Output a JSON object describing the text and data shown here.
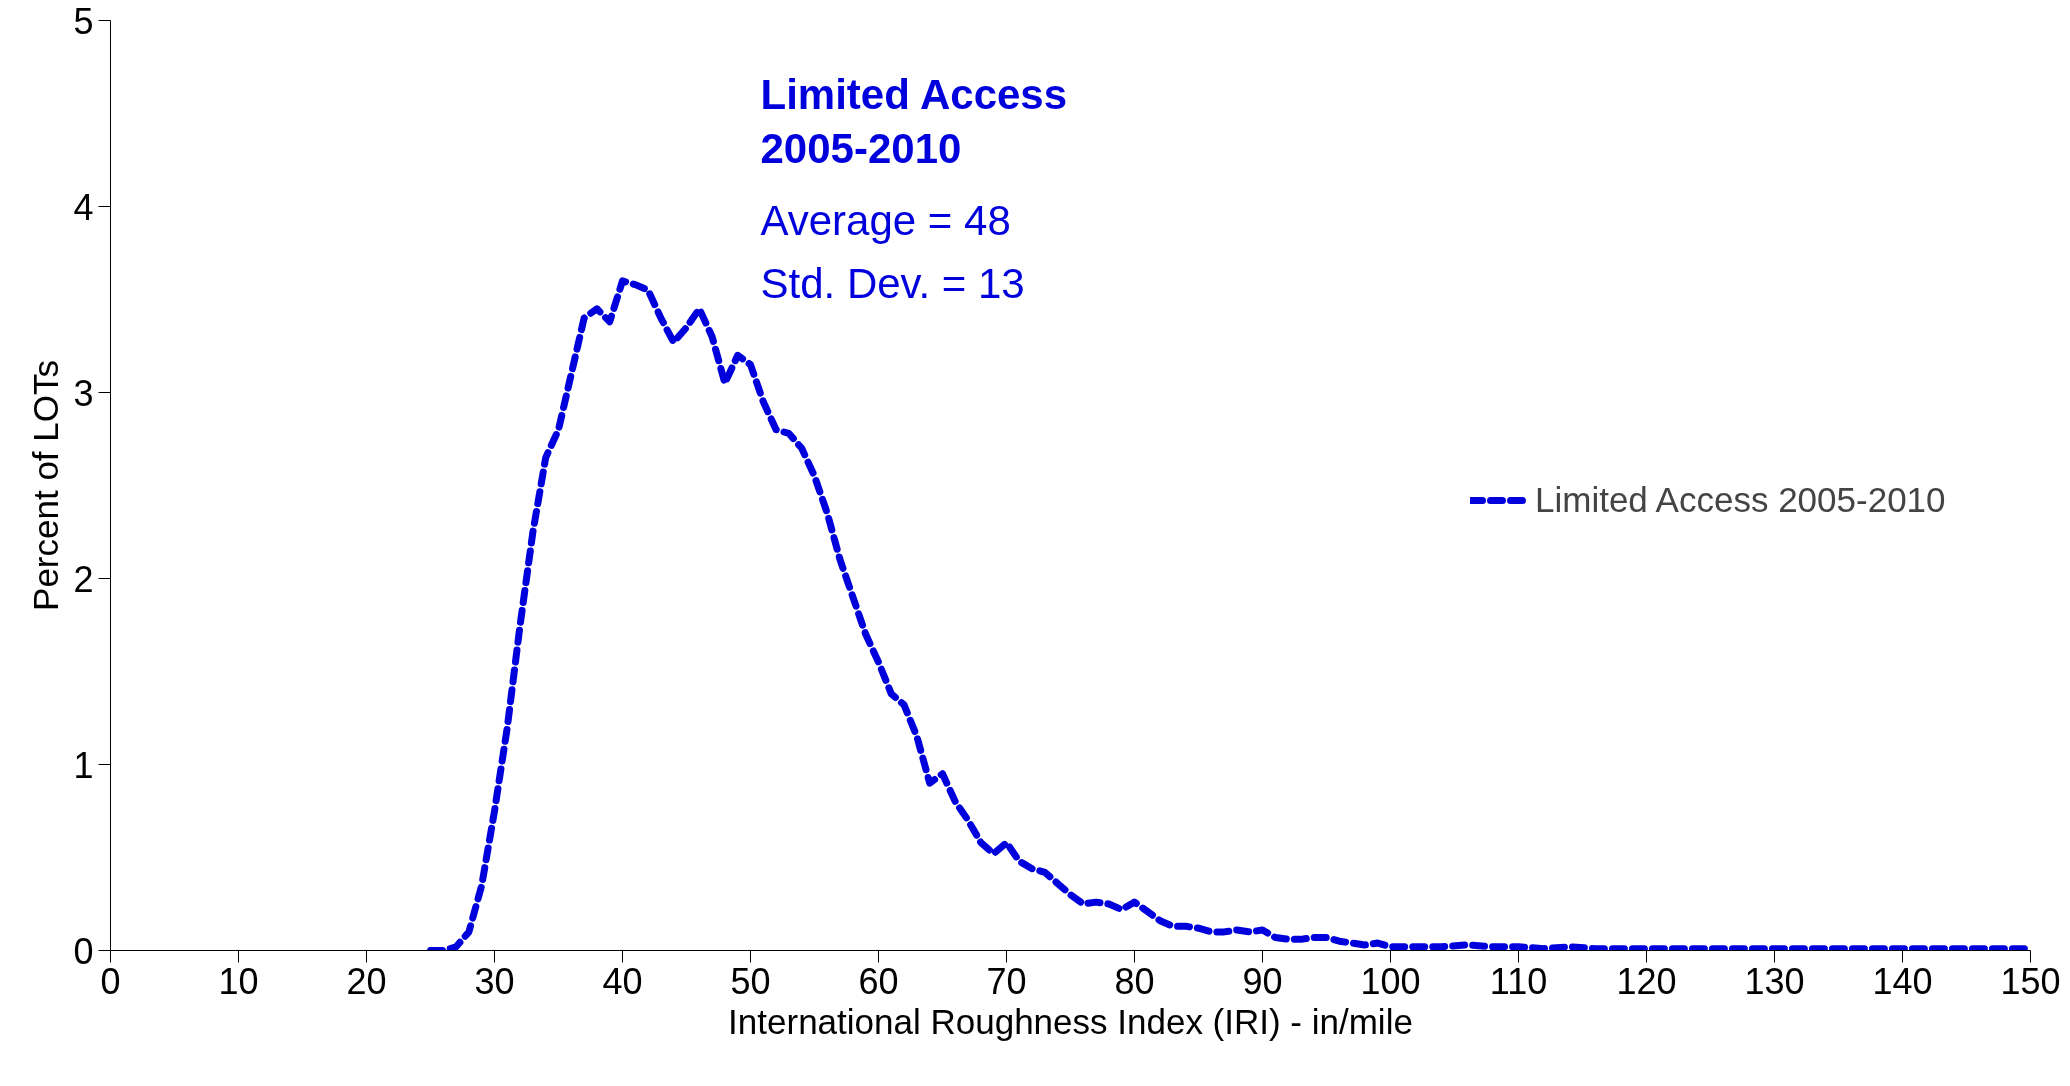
{
  "chart_data": {
    "type": "line",
    "xlabel": "International Roughness Index (IRI) - in/mile",
    "ylabel": "Percent of LOTs",
    "annotations": [
      "Limited Access \n2005-2010",
      "Average = 48",
      "Std. Dev. = 13"
    ],
    "xlim": [
      0,
      150
    ],
    "xticks": [
      0,
      10,
      20,
      30,
      40,
      50,
      60,
      70,
      80,
      90,
      100,
      110,
      120,
      130,
      140,
      150
    ],
    "ylim": [
      0,
      5
    ],
    "yticks": [
      0,
      1,
      2,
      3,
      4,
      5
    ],
    "grid": false,
    "legend": "right",
    "line_style": "dashed",
    "marker": "none",
    "series": [
      {
        "name": "Limited Access 2005-2010",
        "color": "#0000dd",
        "x": [
          25,
          26,
          27,
          28,
          29,
          30,
          31,
          32,
          33,
          34,
          35,
          36,
          37,
          38,
          39,
          40,
          41,
          42,
          43,
          44,
          45,
          46,
          47,
          48,
          49,
          50,
          51,
          52,
          53,
          54,
          55,
          56,
          57,
          58,
          59,
          60,
          61,
          62,
          63,
          64,
          65,
          66,
          67,
          68,
          69,
          70,
          71,
          72,
          73,
          74,
          75,
          76,
          77,
          78,
          79,
          80,
          81,
          82,
          83,
          84,
          85,
          86,
          87,
          88,
          89,
          90,
          91,
          92,
          93,
          94,
          95,
          96,
          97,
          98,
          99,
          100,
          102,
          104,
          106,
          108,
          110,
          112,
          114,
          116,
          118,
          120,
          125,
          130,
          135,
          140,
          145,
          150
        ],
        "values": [
          0,
          0,
          0.02,
          0.1,
          0.35,
          0.75,
          1.2,
          1.75,
          2.25,
          2.65,
          2.8,
          3.1,
          3.4,
          3.45,
          3.38,
          3.6,
          3.58,
          3.55,
          3.4,
          3.27,
          3.35,
          3.45,
          3.3,
          3.05,
          3.2,
          3.15,
          2.95,
          2.8,
          2.78,
          2.7,
          2.55,
          2.35,
          2.1,
          1.9,
          1.7,
          1.55,
          1.38,
          1.32,
          1.15,
          0.9,
          0.95,
          0.8,
          0.7,
          0.58,
          0.52,
          0.58,
          0.48,
          0.44,
          0.42,
          0.36,
          0.3,
          0.25,
          0.26,
          0.25,
          0.22,
          0.26,
          0.21,
          0.16,
          0.13,
          0.13,
          0.12,
          0.1,
          0.1,
          0.11,
          0.1,
          0.11,
          0.07,
          0.06,
          0.06,
          0.07,
          0.07,
          0.05,
          0.04,
          0.03,
          0.04,
          0.02,
          0.02,
          0.02,
          0.03,
          0.02,
          0.02,
          0.01,
          0.02,
          0.01,
          0.01,
          0.01,
          0.01,
          0.01,
          0.01,
          0.01,
          0.01,
          0.01
        ]
      }
    ]
  }
}
